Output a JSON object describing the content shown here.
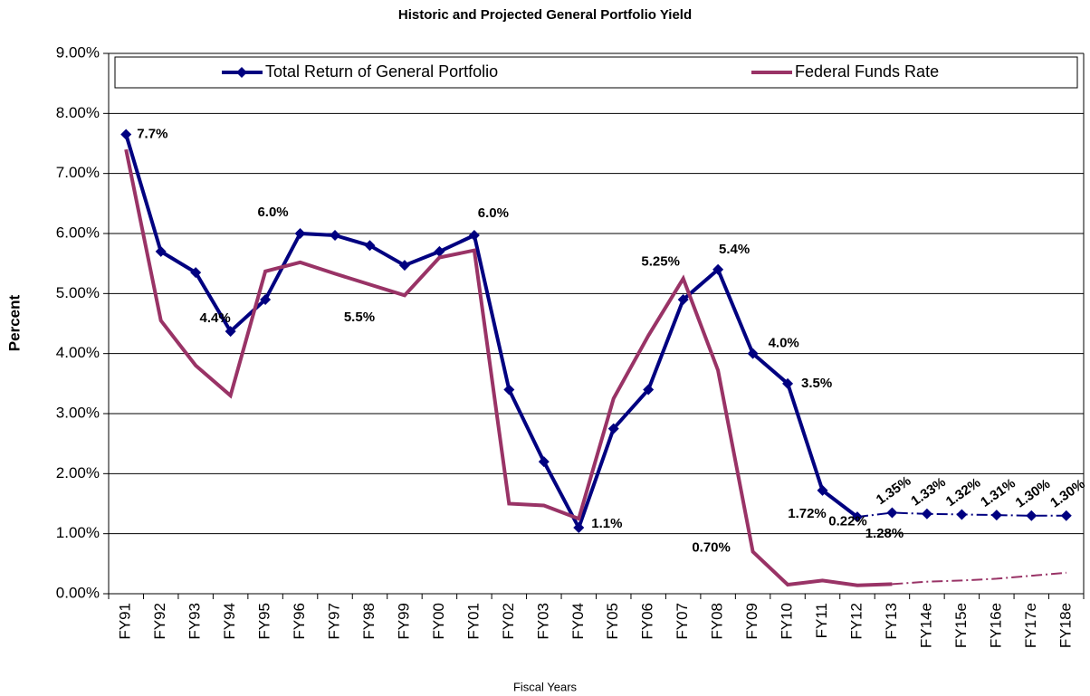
{
  "chart_data": {
    "type": "line",
    "title": "Historic and Projected General Portfolio Yield",
    "x_label": "Fiscal Years",
    "y_label": "Percent",
    "categories": [
      "FY91",
      "FY92",
      "FY93",
      "FY94",
      "FY95",
      "FY96",
      "FY97",
      "FY98",
      "FY99",
      "FY00",
      "FY01",
      "FY02",
      "FY03",
      "FY04",
      "FY05",
      "FY06",
      "FY07",
      "FY08",
      "FY09",
      "FY10",
      "FY11",
      "FY12",
      "FY13",
      "FY14e",
      "FY15e",
      "FY16e",
      "FY17e",
      "FY18e"
    ],
    "series": [
      {
        "name": "Total Return of General Portfolio",
        "color": "#000080",
        "marker": "diamond",
        "dashed_from": 21,
        "values": [
          7.65,
          5.7,
          5.35,
          4.37,
          4.9,
          6.0,
          5.97,
          5.8,
          5.47,
          5.7,
          5.97,
          3.4,
          2.2,
          1.1,
          2.75,
          3.4,
          4.9,
          5.4,
          4.0,
          3.5,
          1.72,
          1.28,
          1.35,
          1.33,
          1.32,
          1.31,
          1.3,
          1.3
        ],
        "value_labels": [
          "7.7%",
          null,
          null,
          "4.4%",
          null,
          "6.0%",
          null,
          null,
          "5.5%",
          null,
          "6.0%",
          null,
          null,
          "1.1%",
          null,
          null,
          null,
          "5.4%",
          "4.0%",
          "3.5%",
          "1.72%",
          "1.28%",
          "1.35%",
          "1.33%",
          "1.32%",
          "1.31%",
          "1.30%",
          "1.30%"
        ]
      },
      {
        "name": "Federal Funds Rate",
        "color": "#993366",
        "marker": null,
        "dashed_from": 22,
        "values": [
          7.4,
          4.55,
          3.8,
          3.3,
          5.37,
          5.52,
          5.33,
          5.15,
          4.97,
          5.6,
          5.72,
          1.5,
          1.47,
          1.25,
          3.25,
          4.3,
          5.25,
          3.72,
          0.7,
          0.15,
          0.22,
          0.14,
          0.16,
          0.2,
          0.22,
          0.25,
          0.3,
          0.35
        ],
        "value_labels": [
          null,
          null,
          null,
          null,
          null,
          null,
          null,
          null,
          null,
          null,
          null,
          null,
          null,
          null,
          null,
          null,
          "5.25%",
          null,
          "0.70%",
          null,
          "0.22%",
          null,
          null,
          null,
          null,
          null,
          null,
          null
        ]
      }
    ],
    "ylim": [
      0,
      9
    ],
    "yticks": [
      {
        "value": 0,
        "label": "0.00%"
      },
      {
        "value": 1,
        "label": "1.00%"
      },
      {
        "value": 2,
        "label": "2.00%"
      },
      {
        "value": 3,
        "label": "3.00%"
      },
      {
        "value": 4,
        "label": "4.00%"
      },
      {
        "value": 5,
        "label": "5.00%"
      },
      {
        "value": 6,
        "label": "6.00%"
      },
      {
        "value": 7,
        "label": "7.00%"
      },
      {
        "value": 8,
        "label": "8.00%"
      },
      {
        "value": 9,
        "label": "9.00%"
      }
    ],
    "grid": true,
    "legend": "top"
  }
}
